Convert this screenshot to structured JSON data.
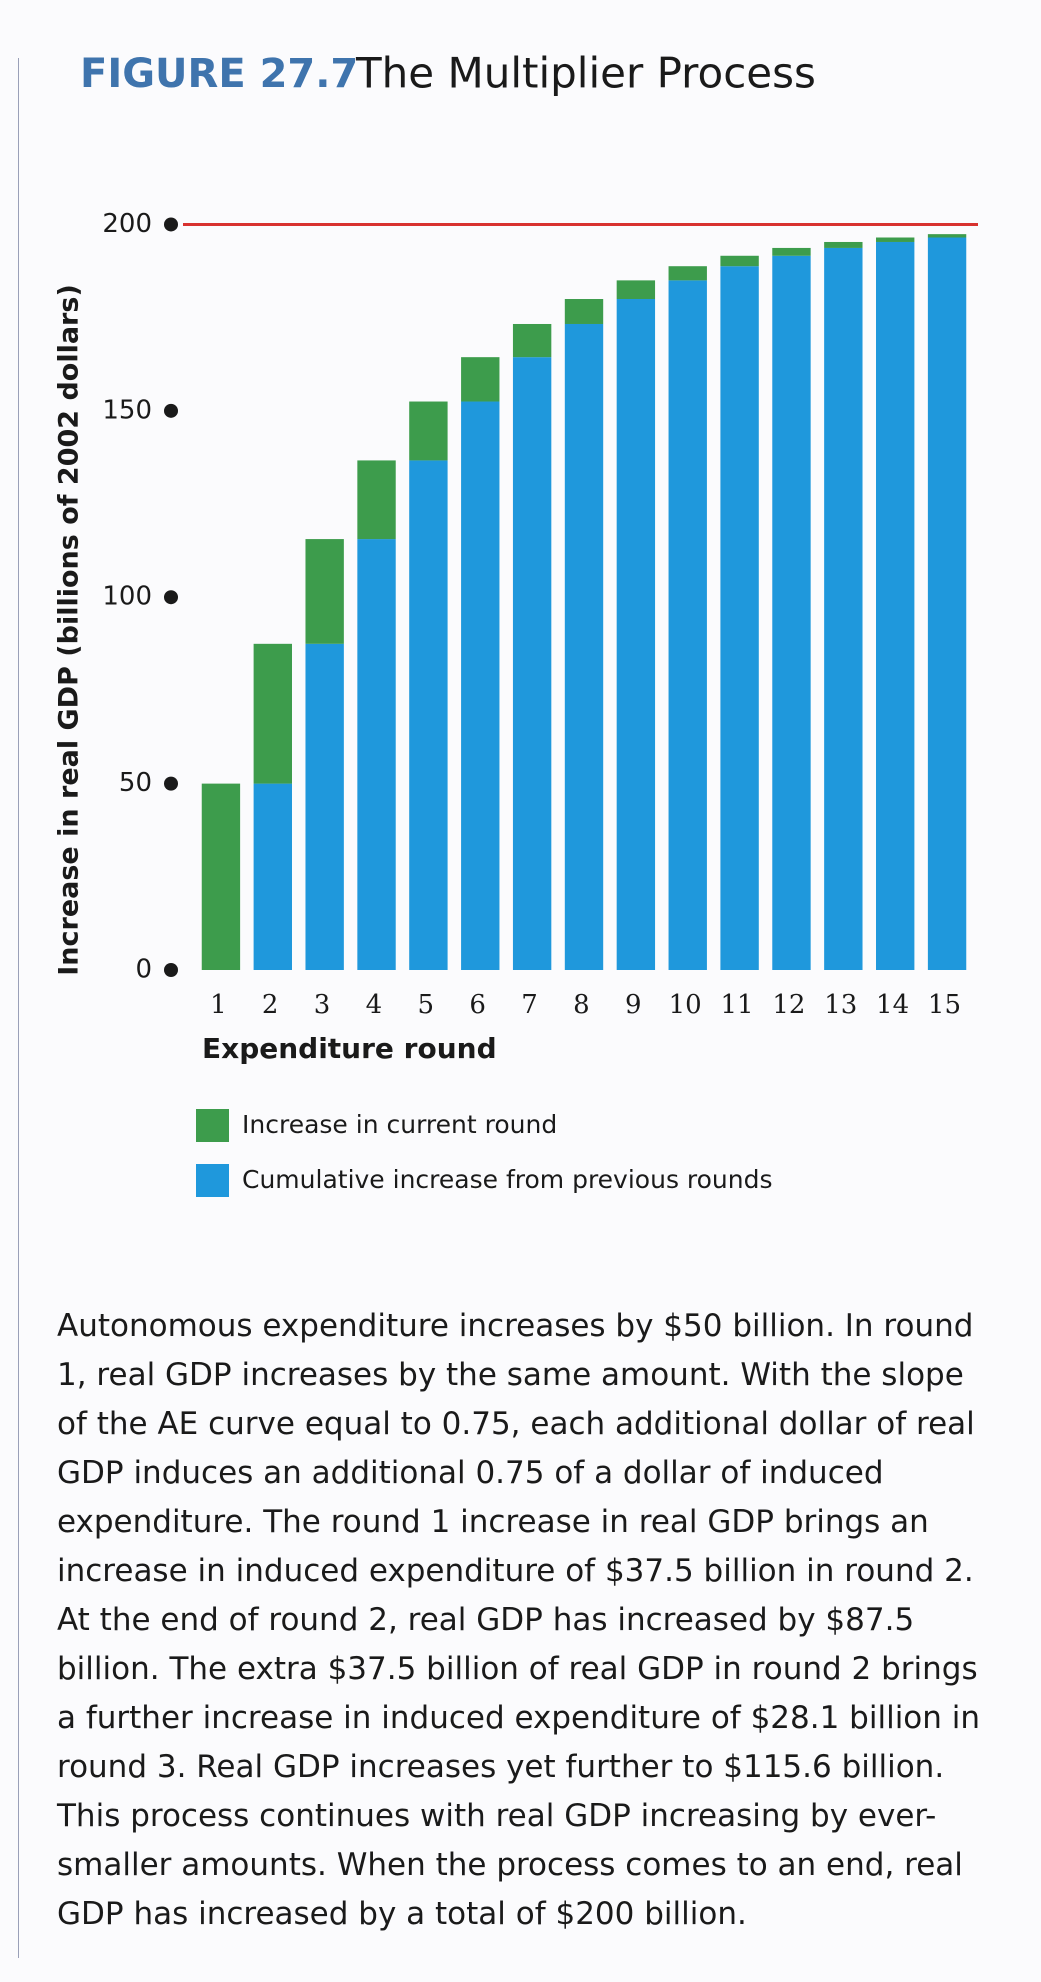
{
  "chart_data": {
    "type": "stacked_bar",
    "figure_label": "FIGURE 27.7",
    "title": "The Multiplier Process",
    "x_label": "Expenditure round",
    "y_label": "Increase in real GDP (billions of 2002 dollars)",
    "categories": [
      "1",
      "2",
      "3",
      "4",
      "5",
      "6",
      "7",
      "8",
      "9",
      "10",
      "11",
      "12",
      "13",
      "14",
      "15"
    ],
    "series": [
      {
        "name": "Increase in current round",
        "color": "#3d9c4c",
        "values": [
          50,
          37.5,
          28.1,
          21.1,
          15.8,
          11.9,
          8.9,
          6.7,
          5.0,
          3.8,
          2.8,
          2.1,
          1.6,
          1.2,
          0.9
        ]
      },
      {
        "name": "Cumulative increase from previous rounds",
        "color": "#1f98dc",
        "values": [
          0,
          50,
          87.5,
          115.6,
          136.7,
          152.5,
          164.4,
          173.3,
          180.0,
          185.0,
          188.8,
          191.6,
          193.7,
          195.3,
          196.5
        ]
      }
    ],
    "ylim": [
      0,
      202
    ],
    "yticks": [
      0,
      50,
      100,
      150,
      200
    ],
    "reference_line": 200,
    "reference_color": "#d8322f",
    "caption": "Autonomous expenditure increases by $50 billion. In round 1, real GDP increases by the same amount. With the slope of the AE curve equal to 0.75, each additional dollar of real GDP induces an additional 0.75 of a dollar of induced expenditure. The round 1 increase in real GDP brings an increase in induced expenditure of $37.5 billion in round 2. At the end of round 2, real GDP has increased by $87.5 billion. The extra $37.5 billion of real GDP in round 2 brings a further increase in induced expenditure of $28.1 billion in round 3. Real GDP increases yet further to $115.6 billion. This process continues with real GDP increasing by ever-smaller amounts. When the process comes to an end, real GDP has increased by a total of $200 billion."
  }
}
